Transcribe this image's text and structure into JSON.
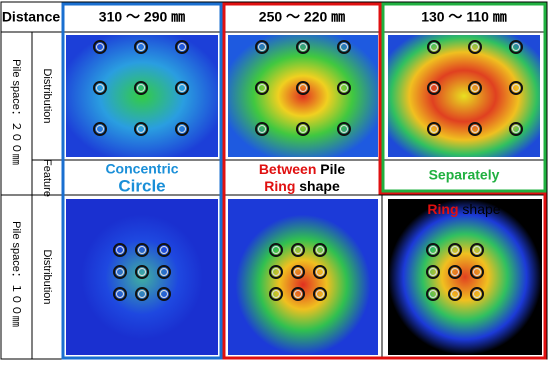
{
  "header": {
    "corner": "Distance",
    "columns": [
      "310 ～ 290 ㎜",
      "250 ～ 220 ㎜",
      "130 ～ 110 ㎜"
    ]
  },
  "rows": [
    {
      "group": "Pile space：２００㎜",
      "label": "Distribution"
    },
    {
      "label": "Feature"
    },
    {
      "group": "Pile space：１００㎜",
      "label": "Distribution"
    }
  ],
  "features": {
    "top": [
      [
        "Concentric",
        "Circle"
      ],
      [
        "Between",
        "Pile",
        "Ring",
        "shape"
      ],
      [
        "Separately"
      ]
    ],
    "bottom": [
      [
        "Ring",
        "shape"
      ]
    ]
  }
}
